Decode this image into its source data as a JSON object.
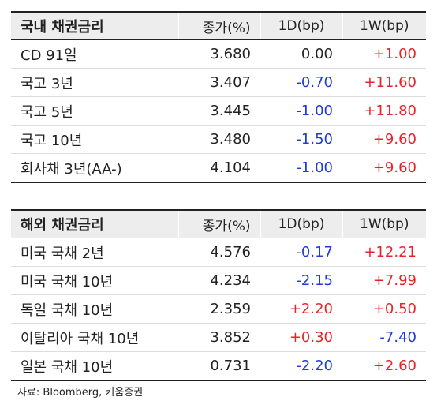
{
  "domestic": {
    "headers": [
      "국내 채권금리",
      "종가(%)",
      "1D(bp)",
      "1W(bp)"
    ],
    "rows": [
      {
        "name": "CD 91일",
        "close": "3.680",
        "d1": "0.00",
        "w1": "+1.00"
      },
      {
        "name": "국고 3년",
        "close": "3.407",
        "d1": "-0.70",
        "w1": "+11.60"
      },
      {
        "name": "국고 5년",
        "close": "3.445",
        "d1": "-1.00",
        "w1": "+11.80"
      },
      {
        "name": "국고 10년",
        "close": "3.480",
        "d1": "-1.50",
        "w1": "+9.60"
      },
      {
        "name": "회사채 3년(AA-)",
        "close": "4.104",
        "d1": "-1.00",
        "w1": "+9.60"
      }
    ]
  },
  "foreign": {
    "headers": [
      "해외 채권금리",
      "종가(%)",
      "1D(bp)",
      "1W(bp)"
    ],
    "rows": [
      {
        "name": "미국 국채 2년",
        "close": "4.576",
        "d1": "-0.17",
        "w1": "+12.21"
      },
      {
        "name": "미국 국채 10년",
        "close": "4.234",
        "d1": "-2.15",
        "w1": "+7.99"
      },
      {
        "name": "독일 국채 10년",
        "close": "2.359",
        "d1": "+2.20",
        "w1": "+0.50"
      },
      {
        "name": "이탈리아 국채 10년",
        "close": "3.852",
        "d1": "+0.30",
        "w1": "-7.40"
      },
      {
        "name": "일본 국채 10년",
        "close": "0.731",
        "d1": "-2.20",
        "w1": "+2.60"
      }
    ]
  },
  "source": "자료: Bloomberg, 키움증권",
  "colors": {
    "positive": "#e8242a",
    "negative": "#1f3bd6",
    "neutral": "#222222",
    "header_bg": "#ededed"
  }
}
